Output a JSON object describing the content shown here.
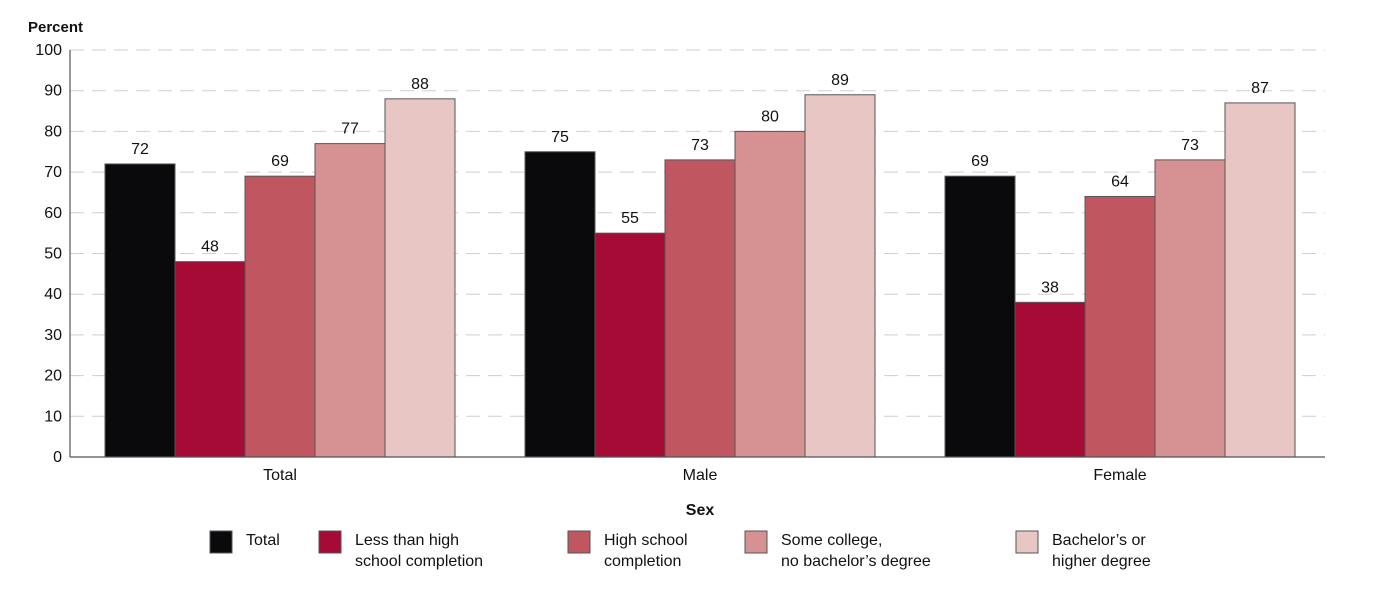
{
  "chart_data": {
    "type": "bar",
    "ylabel": "Percent",
    "xlabel": "Sex",
    "ylim": [
      0,
      100
    ],
    "yticks": [
      0,
      10,
      20,
      30,
      40,
      50,
      60,
      70,
      80,
      90,
      100
    ],
    "grid": true,
    "legend_position": "bottom",
    "categories": [
      "Total",
      "Male",
      "Female"
    ],
    "series": [
      {
        "name": "Total",
        "legend_lines": [
          "Total"
        ],
        "color": "#0a0a0c",
        "values": [
          72,
          75,
          69
        ]
      },
      {
        "name": "Less than high school completion",
        "legend_lines": [
          "Less than high",
          "school completion"
        ],
        "color": "#a50b35",
        "values": [
          48,
          55,
          38
        ]
      },
      {
        "name": "High school completion",
        "legend_lines": [
          "High school",
          "completion"
        ],
        "color": "#c05660",
        "values": [
          69,
          73,
          64
        ]
      },
      {
        "name": "Some college, no bachelor’s degree",
        "legend_lines": [
          "Some college,",
          "no bachelor’s degree"
        ],
        "color": "#d69292",
        "values": [
          77,
          80,
          73
        ]
      },
      {
        "name": "Bachelor’s or higher degree",
        "legend_lines": [
          "Bachelor’s or",
          "higher degree"
        ],
        "color": "#e8c6c3",
        "values": [
          88,
          89,
          87
        ]
      }
    ]
  }
}
